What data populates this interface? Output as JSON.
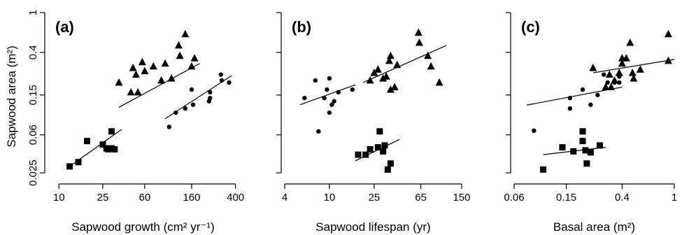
{
  "chart_data": [
    {
      "type": "scatter",
      "panel_label": "(a)",
      "xlabel": "Sapwood growth (cm² yr⁻¹)",
      "ylabel": "Sapwood area (m²)",
      "x_scale": "log",
      "y_scale": "log",
      "xlim": [
        8,
        420
      ],
      "ylim": [
        0.021,
        1
      ],
      "x_ticks": [
        10,
        25,
        60,
        160,
        400
      ],
      "x_tick_labels": [
        "10",
        "25",
        "60",
        "160",
        "400"
      ],
      "y_ticks": [
        0.025,
        0.06,
        0.15,
        0.4,
        1
      ],
      "y_tick_labels": [
        "0.025",
        "0.06",
        "0.15",
        "0.4",
        "1"
      ],
      "series": [
        {
          "marker": "square",
          "points": [
            [
              12.5,
              0.029
            ],
            [
              15,
              0.032
            ],
            [
              18,
              0.052
            ],
            [
              25,
              0.048
            ],
            [
              27,
              0.044
            ],
            [
              28,
              0.043
            ],
            [
              30,
              0.065
            ],
            [
              30,
              0.044
            ],
            [
              32,
              0.043
            ]
          ]
        },
        {
          "marker": "triangle",
          "points": [
            [
              35,
              0.2
            ],
            [
              45,
              0.16
            ],
            [
              47,
              0.28
            ],
            [
              50,
              0.24
            ],
            [
              52,
              0.16
            ],
            [
              57,
              0.32
            ],
            [
              60,
              0.26
            ],
            [
              72,
              0.29
            ],
            [
              85,
              0.21
            ],
            [
              92,
              0.31
            ],
            [
              105,
              0.22
            ],
            [
              122,
              0.47
            ],
            [
              125,
              0.37
            ],
            [
              140,
              0.61
            ],
            [
              160,
              0.29
            ],
            [
              170,
              0.35
            ]
          ]
        },
        {
          "marker": "circle",
          "points": [
            [
              100,
              0.072
            ],
            [
              115,
              0.1
            ],
            [
              140,
              0.11
            ],
            [
              160,
              0.17
            ],
            [
              165,
              0.12
            ],
            [
              230,
              0.13
            ],
            [
              235,
              0.14
            ],
            [
              235,
              0.16
            ],
            [
              295,
              0.24
            ],
            [
              300,
              0.21
            ],
            [
              350,
              0.2
            ]
          ]
        }
      ],
      "fit_lines": [
        {
          "x": [
            12.5,
            37
          ],
          "y": [
            0.029,
            0.068
          ]
        },
        {
          "x": [
            35,
            190
          ],
          "y": [
            0.113,
            0.31
          ]
        },
        {
          "x": [
            92,
            370
          ],
          "y": [
            0.087,
            0.235
          ]
        }
      ]
    },
    {
      "type": "scatter",
      "panel_label": "(b)",
      "xlabel": "Sapwood lifespan (yr)",
      "x_scale": "log",
      "y_scale": "log",
      "xlim": [
        4,
        150
      ],
      "ylim": [
        0.021,
        1
      ],
      "x_ticks": [
        4,
        10,
        25,
        65,
        150
      ],
      "x_tick_labels": [
        "4",
        "10",
        "25",
        "65",
        "150"
      ],
      "y_ticks": [
        0.025,
        0.06,
        0.15,
        0.4,
        1
      ],
      "series": [
        {
          "marker": "square",
          "points": [
            [
              18,
              0.038
            ],
            [
              21,
              0.038
            ],
            [
              23,
              0.043
            ],
            [
              27,
              0.045
            ],
            [
              28,
              0.065
            ],
            [
              30,
              0.041
            ],
            [
              31,
              0.047
            ],
            [
              33,
              0.027
            ],
            [
              35,
              0.031
            ]
          ]
        },
        {
          "marker": "triangle",
          "points": [
            [
              23,
              0.21
            ],
            [
              25,
              0.25
            ],
            [
              27,
              0.27
            ],
            [
              30,
              0.22
            ],
            [
              32,
              0.23
            ],
            [
              34,
              0.33
            ],
            [
              35,
              0.37
            ],
            [
              35,
              0.17
            ],
            [
              38,
              0.18
            ],
            [
              40,
              0.3
            ],
            [
              62,
              0.63
            ],
            [
              63,
              0.5
            ],
            [
              75,
              0.37
            ],
            [
              80,
              0.29
            ],
            [
              95,
              0.2
            ]
          ]
        },
        {
          "marker": "circle",
          "points": [
            [
              6,
              0.14
            ],
            [
              7.5,
              0.21
            ],
            [
              8,
              0.065
            ],
            [
              9,
              0.14
            ],
            [
              9.5,
              0.17
            ],
            [
              10,
              0.22
            ],
            [
              10,
              0.1
            ],
            [
              10.5,
              0.12
            ],
            [
              11,
              0.13
            ],
            [
              12,
              0.16
            ],
            [
              16,
              0.17
            ]
          ]
        }
      ],
      "fit_lines": [
        {
          "x": [
            5.5,
            17
          ],
          "y": [
            0.12,
            0.19
          ]
        },
        {
          "x": [
            20,
            110
          ],
          "y": [
            0.2,
            0.47
          ]
        },
        {
          "x": [
            17,
            42
          ],
          "y": [
            0.033,
            0.054
          ]
        }
      ]
    },
    {
      "type": "scatter",
      "panel_label": "(c)",
      "xlabel": "Basal area (m²)",
      "x_scale": "log",
      "y_scale": "log",
      "xlim": [
        0.06,
        1
      ],
      "ylim": [
        0.021,
        1
      ],
      "x_ticks": [
        0.06,
        0.15,
        0.4,
        1
      ],
      "x_tick_labels": [
        "0.06",
        "0.15",
        "0.4",
        "1"
      ],
      "y_ticks": [
        0.025,
        0.06,
        0.15,
        0.4,
        1
      ],
      "series": [
        {
          "marker": "square",
          "points": [
            [
              0.1,
              0.027
            ],
            [
              0.14,
              0.045
            ],
            [
              0.17,
              0.041
            ],
            [
              0.2,
              0.065
            ],
            [
              0.2,
              0.052
            ],
            [
              0.21,
              0.042
            ],
            [
              0.215,
              0.031
            ],
            [
              0.23,
              0.04
            ],
            [
              0.27,
              0.047
            ]
          ]
        },
        {
          "marker": "triangle",
          "points": [
            [
              0.24,
              0.28
            ],
            [
              0.3,
              0.18
            ],
            [
              0.32,
              0.24
            ],
            [
              0.33,
              0.18
            ],
            [
              0.35,
              0.21
            ],
            [
              0.38,
              0.25
            ],
            [
              0.4,
              0.31
            ],
            [
              0.4,
              0.35
            ],
            [
              0.43,
              0.35
            ],
            [
              0.46,
              0.5
            ],
            [
              0.48,
              0.25
            ],
            [
              0.49,
              0.22
            ],
            [
              0.55,
              0.27
            ],
            [
              0.9,
              0.61
            ],
            [
              0.9,
              0.33
            ]
          ]
        },
        {
          "marker": "circle",
          "points": [
            [
              0.085,
              0.066
            ],
            [
              0.16,
              0.14
            ],
            [
              0.16,
              0.11
            ],
            [
              0.2,
              0.17
            ],
            [
              0.23,
              0.12
            ],
            [
              0.26,
              0.15
            ],
            [
              0.29,
              0.24
            ],
            [
              0.31,
              0.2
            ],
            [
              0.35,
              0.2
            ],
            [
              0.38,
              0.2
            ],
            [
              0.38,
              0.23
            ]
          ]
        }
      ],
      "fit_lines": [
        {
          "x": [
            0.075,
            0.4
          ],
          "y": [
            0.119,
            0.18
          ]
        },
        {
          "x": [
            0.24,
            1.0
          ],
          "y": [
            0.25,
            0.34
          ]
        },
        {
          "x": [
            0.1,
            0.3
          ],
          "y": [
            0.038,
            0.045
          ]
        }
      ]
    }
  ]
}
